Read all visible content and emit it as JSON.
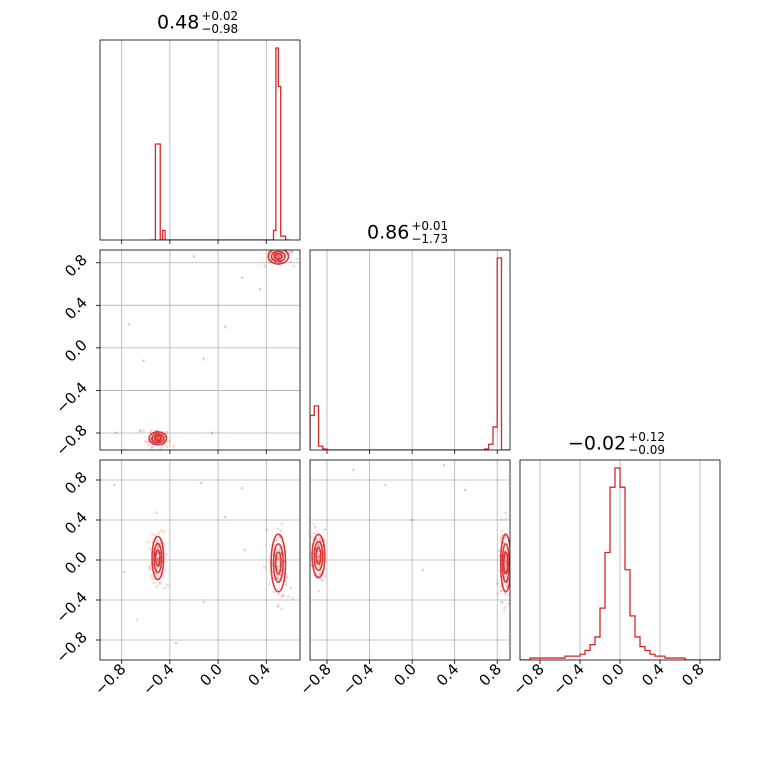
{
  "chart_data": {
    "type": "corner",
    "parameter_count": 3,
    "range": [
      -1.0,
      1.0
    ],
    "grid": true,
    "series_color": "#d62728",
    "ticks": {
      "values": [
        -0.8,
        -0.4,
        0.0,
        0.4,
        0.8
      ],
      "labels": [
        "−0.8",
        "−0.4",
        "0.0",
        "0.4",
        "0.8"
      ]
    },
    "bottom_row_tick_labels": [
      [
        "−0.8",
        "−0.4",
        "0.0",
        "0.4"
      ],
      [
        "−0.8",
        "−0.4",
        "0.0",
        "0.4",
        "0.8"
      ],
      [
        "−0.8",
        "−0.4",
        "0.0",
        "0.4",
        "0.8"
      ]
    ],
    "left_column_tick_labels": [
      "−0.8",
      "−0.4",
      "0.0",
      "0.4",
      "0.8"
    ],
    "marginal_titles": [
      {
        "median": "0.48",
        "plus": "+0.02",
        "minus": "−0.98"
      },
      {
        "median": "0.86",
        "plus": "+0.01",
        "minus": "−1.73"
      },
      {
        "median": "−0.02",
        "plus": "+0.12",
        "minus": "−0.09"
      }
    ],
    "axis_limits": [
      [
        -0.98,
        0.68
      ],
      [
        -0.96,
        0.92
      ],
      [
        -1.0,
        1.0
      ]
    ],
    "histograms": [
      {
        "param": 0,
        "bin_edges": [
          -0.56,
          -0.54,
          -0.52,
          -0.5,
          -0.48,
          -0.46,
          -0.44,
          0.42,
          0.44,
          0.46,
          0.48,
          0.5,
          0.52,
          0.54,
          0.56,
          0.58,
          0.6
        ],
        "counts": [
          0.0,
          0.0,
          0.5,
          0.5,
          0.0,
          0.05,
          0.0,
          0.0,
          0.0,
          0.05,
          1.0,
          0.8,
          0.02,
          0.02,
          0.0,
          0.0
        ]
      },
      {
        "param": 1,
        "bin_edges": [
          -0.96,
          -0.92,
          -0.88,
          -0.84,
          -0.8,
          -0.76,
          0.68,
          0.72,
          0.76,
          0.8,
          0.84,
          0.88,
          0.92
        ],
        "counts": [
          0.18,
          0.23,
          0.02,
          0.005,
          0.0,
          0.0,
          0.005,
          0.03,
          0.12,
          1.0,
          0.0,
          0.0
        ]
      },
      {
        "param": 2,
        "bin_edges": [
          -1.0,
          -0.95,
          -0.9,
          -0.85,
          -0.8,
          -0.75,
          -0.7,
          -0.65,
          -0.6,
          -0.55,
          -0.5,
          -0.45,
          -0.4,
          -0.35,
          -0.3,
          -0.25,
          -0.2,
          -0.15,
          -0.1,
          -0.05,
          0.0,
          0.05,
          0.1,
          0.15,
          0.2,
          0.25,
          0.3,
          0.35,
          0.4,
          0.45,
          0.5,
          0.55,
          0.6,
          0.65,
          0.7,
          0.75,
          0.8,
          0.85,
          0.9,
          0.95,
          1.0
        ],
        "counts": [
          0,
          0,
          0.01,
          0.01,
          0.01,
          0.01,
          0.01,
          0.01,
          0.01,
          0.02,
          0.02,
          0.02,
          0.03,
          0.05,
          0.08,
          0.12,
          0.27,
          0.56,
          0.9,
          1.0,
          0.9,
          0.47,
          0.23,
          0.12,
          0.07,
          0.05,
          0.03,
          0.02,
          0.02,
          0.01,
          0.01,
          0.01,
          0.01,
          0.0,
          0.0,
          0.0,
          0.0,
          0.0,
          0.0,
          0.0
        ]
      }
    ],
    "scatter_panels": [
      {
        "x_param": 0,
        "y_param": 1,
        "clusters": [
          {
            "cx": 0.5,
            "cy": 0.86,
            "sx": 0.035,
            "sy": 0.03
          },
          {
            "cx": -0.5,
            "cy": -0.85,
            "sx": 0.03,
            "sy": 0.025
          }
        ],
        "stray_points": [
          [
            -0.74,
            0.22
          ],
          [
            -0.2,
            0.86
          ],
          [
            0.2,
            0.66
          ],
          [
            -0.12,
            -0.1
          ],
          [
            -0.62,
            -0.12
          ],
          [
            0.06,
            0.2
          ],
          [
            -0.85,
            -0.8
          ],
          [
            -0.05,
            -0.8
          ],
          [
            0.35,
            0.55
          ]
        ]
      },
      {
        "x_param": 0,
        "y_param": 2,
        "clusters": [
          {
            "cx": -0.5,
            "cy": 0.02,
            "sx": 0.02,
            "sy": 0.09
          },
          {
            "cx": 0.5,
            "cy": -0.03,
            "sx": 0.025,
            "sy": 0.12
          }
        ],
        "stray_points": [
          [
            -0.14,
            0.77
          ],
          [
            0.2,
            0.72
          ],
          [
            -0.12,
            -0.42
          ],
          [
            0.06,
            0.43
          ],
          [
            -0.78,
            -0.12
          ],
          [
            -0.35,
            -0.83
          ],
          [
            -0.86,
            0.75
          ],
          [
            0.22,
            0.1
          ]
        ]
      },
      {
        "x_param": 1,
        "y_param": 2,
        "clusters": [
          {
            "cx": -0.88,
            "cy": 0.04,
            "sx": 0.025,
            "sy": 0.09
          },
          {
            "cx": 0.88,
            "cy": -0.03,
            "sx": 0.02,
            "sy": 0.12
          }
        ],
        "stray_points": [
          [
            -0.25,
            0.75
          ],
          [
            0.3,
            0.95
          ],
          [
            0.0,
            0.4
          ],
          [
            -0.55,
            0.9
          ],
          [
            0.5,
            0.7
          ],
          [
            0.1,
            -0.1
          ]
        ]
      }
    ]
  }
}
